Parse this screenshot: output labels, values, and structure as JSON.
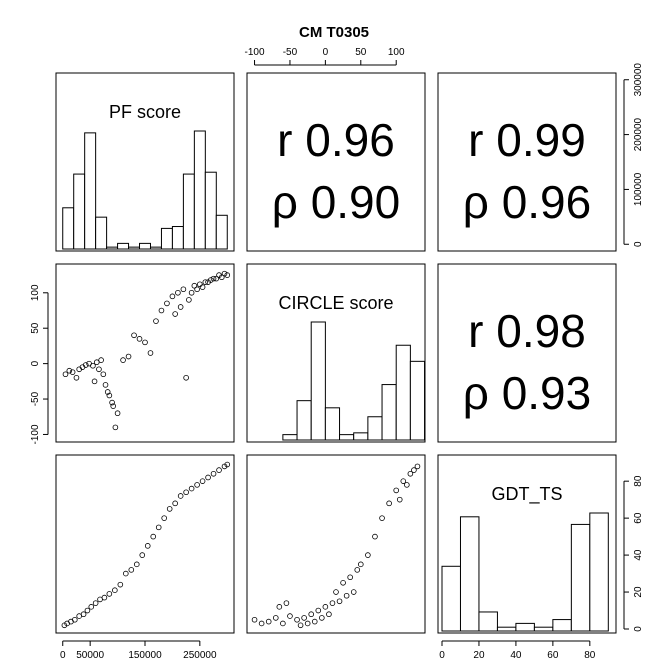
{
  "title": "CM T0305",
  "variables": [
    {
      "name": "PF score",
      "range": [
        -5000,
        305000
      ]
    },
    {
      "name": "CIRCLE score",
      "range": [
        -105,
        135
      ]
    },
    {
      "name": "GDT_TS",
      "range": [
        0,
        92
      ]
    }
  ],
  "axes": {
    "top": {
      "variable": 1,
      "ticks": [
        "-100",
        "-50",
        "0",
        "50",
        "100"
      ],
      "tick_values": [
        -100,
        -50,
        0,
        50,
        100
      ]
    },
    "left": {
      "variable": 1,
      "ticks": [
        "-100",
        "-50",
        "0",
        "50",
        "100"
      ],
      "tick_values": [
        -100,
        -50,
        0,
        50,
        100
      ]
    },
    "right": {
      "variable": 0,
      "ticks": [
        "0",
        "100000",
        "200000",
        "300000"
      ],
      "tick_values": [
        0,
        100000,
        200000,
        300000
      ]
    },
    "bottom_left": {
      "variable": 0,
      "ticks": [
        "0",
        "50000",
        "150000",
        "250000"
      ],
      "tick_values": [
        0,
        50000,
        150000,
        250000
      ]
    },
    "bottom_right": {
      "variable": 2,
      "ticks": [
        "0",
        "20",
        "40",
        "60",
        "80"
      ],
      "tick_values": [
        0,
        20,
        40,
        60,
        80
      ]
    },
    "right_lower": {
      "variable": 2,
      "ticks": [
        "0",
        "20",
        "40",
        "60",
        "80"
      ],
      "tick_values": [
        0,
        20,
        40,
        60,
        80
      ]
    }
  },
  "correlations": [
    {
      "pair": "PF score vs CIRCLE score",
      "r_label": "r 0.96",
      "rho_label": "ρ 0.90"
    },
    {
      "pair": "PF score vs GDT_TS",
      "r_label": "r 0.99",
      "rho_label": "ρ 0.96"
    },
    {
      "pair": "CIRCLE score vs GDT_TS",
      "r_label": "r 0.98",
      "rho_label": "ρ 0.93"
    }
  ],
  "chart_data": {
    "type": "scatter",
    "kind": "pairs-matrix",
    "title": "CM T0305",
    "histograms": [
      {
        "variable": "PF score",
        "bins": [
          0,
          20000,
          40000,
          60000,
          80000,
          100000,
          120000,
          140000,
          160000,
          180000,
          200000,
          220000,
          240000,
          260000,
          280000,
          300000
        ],
        "counts": [
          22,
          40,
          62,
          17,
          1,
          3,
          1,
          3,
          1,
          11,
          12,
          40,
          63,
          41,
          18,
          2
        ]
      },
      {
        "variable": "CIRCLE score",
        "bins": [
          -100,
          -80,
          -60,
          -40,
          -20,
          0,
          20,
          40,
          60,
          80,
          100,
          120,
          140
        ],
        "counts": [
          0,
          0,
          3,
          22,
          66,
          18,
          3,
          4,
          13,
          31,
          53,
          44
        ]
      },
      {
        "variable": "GDT_TS",
        "bins": [
          0,
          10,
          20,
          30,
          40,
          50,
          60,
          70,
          80,
          90
        ],
        "counts": [
          34,
          60,
          10,
          2,
          4,
          2,
          6,
          56,
          62
        ]
      }
    ],
    "series": [
      {
        "x_var": "PF score",
        "y_var": "CIRCLE score",
        "x": [
          5000,
          12000,
          18000,
          25000,
          30000,
          36000,
          42000,
          48000,
          55000,
          62000,
          70000,
          78000,
          85000,
          92000,
          100000,
          110000,
          120000,
          130000,
          140000,
          150000,
          160000,
          170000,
          180000,
          190000,
          200000,
          210000,
          220000,
          225000,
          230000,
          240000,
          250000,
          260000,
          270000,
          280000,
          290000,
          300000,
          58000,
          66000,
          74000,
          82000,
          90000,
          96000,
          205000,
          215000,
          235000,
          245000,
          255000,
          265000,
          275000,
          285000,
          295000
        ],
        "y": [
          -15,
          -10,
          -12,
          -20,
          -8,
          -5,
          -2,
          0,
          -3,
          2,
          5,
          -30,
          -45,
          -60,
          -70,
          5,
          10,
          40,
          35,
          30,
          15,
          60,
          75,
          85,
          95,
          100,
          105,
          -20,
          90,
          110,
          112,
          115,
          118,
          120,
          122,
          125,
          -25,
          -8,
          -15,
          -40,
          -55,
          -90,
          70,
          80,
          100,
          105,
          108,
          115,
          120,
          125,
          127
        ]
      },
      {
        "x_var": "PF score",
        "y_var": "GDT_TS",
        "x": [
          3000,
          8000,
          15000,
          22000,
          30000,
          38000,
          45000,
          52000,
          60000,
          68000,
          76000,
          85000,
          95000,
          105000,
          115000,
          125000,
          135000,
          145000,
          155000,
          165000,
          175000,
          185000,
          195000,
          205000,
          215000,
          225000,
          235000,
          245000,
          255000,
          265000,
          275000,
          285000,
          295000,
          300000
        ],
        "y": [
          2,
          3,
          4,
          5,
          7,
          8,
          10,
          12,
          14,
          16,
          17,
          19,
          21,
          24,
          30,
          32,
          35,
          40,
          45,
          50,
          55,
          60,
          65,
          68,
          72,
          74,
          76,
          78,
          80,
          82,
          84,
          86,
          88,
          89
        ]
      },
      {
        "x_var": "CIRCLE score",
        "y_var": "GDT_TS",
        "x": [
          -100,
          -90,
          -80,
          -70,
          -60,
          -50,
          -40,
          -30,
          -20,
          -10,
          0,
          10,
          20,
          30,
          40,
          50,
          60,
          70,
          80,
          90,
          100,
          110,
          120,
          130,
          -35,
          -25,
          -15,
          -5,
          5,
          -55,
          -65,
          15,
          25,
          35,
          45,
          105,
          115,
          125
        ],
        "y": [
          5,
          3,
          4,
          6,
          3,
          7,
          5,
          6,
          8,
          10,
          12,
          14,
          15,
          18,
          20,
          35,
          40,
          50,
          60,
          68,
          75,
          80,
          84,
          88,
          2,
          3,
          4,
          6,
          8,
          14,
          12,
          20,
          25,
          28,
          32,
          70,
          78,
          86
        ]
      }
    ]
  }
}
